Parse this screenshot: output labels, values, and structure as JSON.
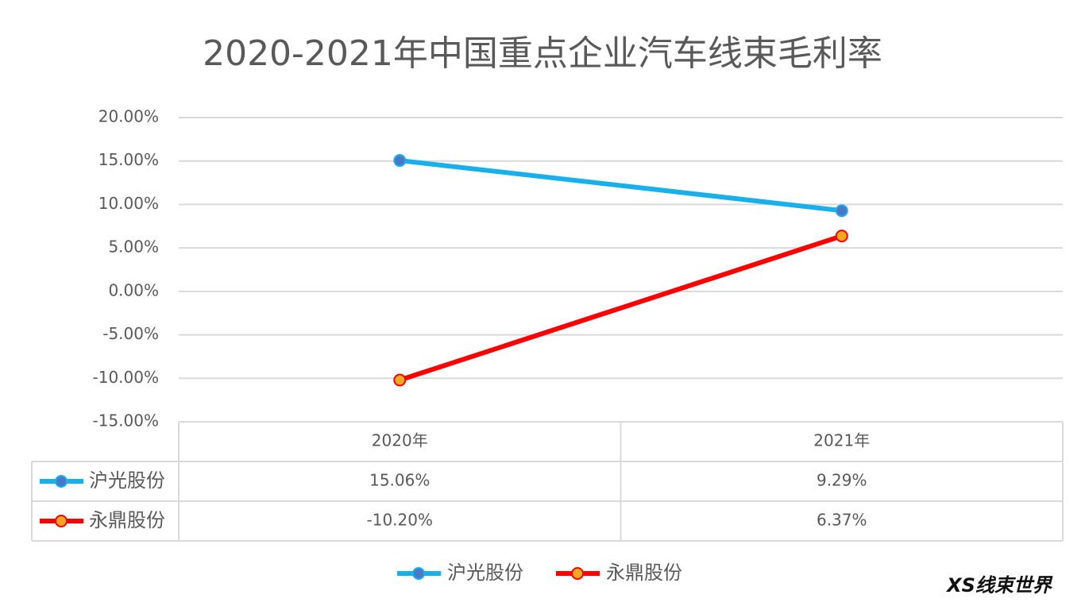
{
  "chart_data": {
    "type": "line",
    "title": "2020-2021年中国重点企业汽车线束毛利率",
    "categories": [
      "2020年",
      "2021年"
    ],
    "series": [
      {
        "name": "沪光股份",
        "color": "#17b0ea",
        "marker_color": "#4a78c8",
        "values": [
          15.06,
          9.29
        ],
        "value_labels": [
          "15.06%",
          "9.29%"
        ]
      },
      {
        "name": "永鼎股份",
        "color": "#ff0000",
        "marker_color": "#f5a623",
        "values": [
          -10.2,
          6.37
        ],
        "value_labels": [
          "-10.20%",
          "6.37%"
        ]
      }
    ],
    "ylim": [
      -15,
      20
    ],
    "yticks": [
      {
        "value": 20,
        "label": "20.00%"
      },
      {
        "value": 15,
        "label": "15.00%"
      },
      {
        "value": 10,
        "label": "10.00%"
      },
      {
        "value": 5,
        "label": "5.00%"
      },
      {
        "value": 0,
        "label": "0.00%"
      },
      {
        "value": -5,
        "label": "-5.00%"
      },
      {
        "value": -10,
        "label": "-10.00%"
      },
      {
        "value": -15,
        "label": "-15.00%"
      }
    ],
    "grid": true,
    "data_table": true,
    "legend": "bottom",
    "watermark": "XS线束世界"
  }
}
